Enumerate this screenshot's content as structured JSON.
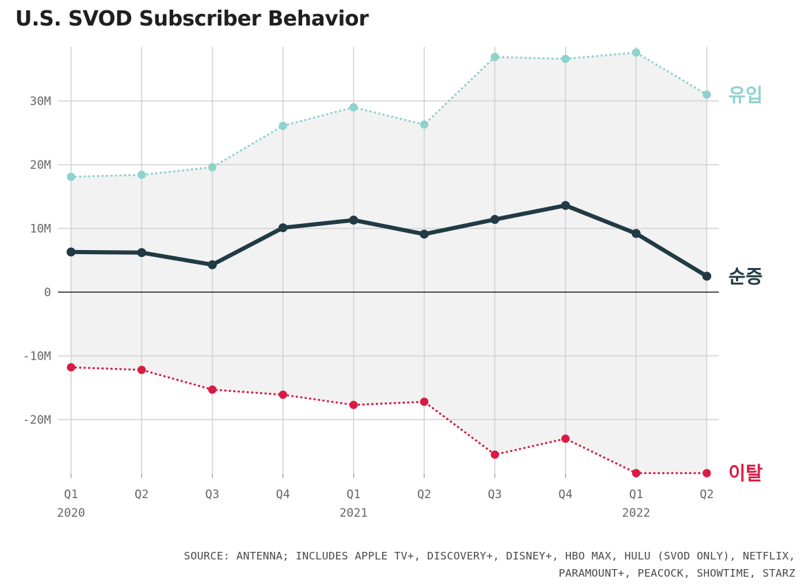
{
  "chart_data": {
    "type": "line",
    "title": "U.S. SVOD Subscriber Behavior",
    "categories": [
      "Q1 2020",
      "Q2 2020",
      "Q3 2020",
      "Q4 2020",
      "Q1 2021",
      "Q2 2021",
      "Q3 2021",
      "Q4 2021",
      "Q1 2022",
      "Q2 2022"
    ],
    "x_tick_labels": [
      {
        "quarter": "Q1",
        "year": "2020"
      },
      {
        "quarter": "Q2",
        "year": ""
      },
      {
        "quarter": "Q3",
        "year": ""
      },
      {
        "quarter": "Q4",
        "year": ""
      },
      {
        "quarter": "Q1",
        "year": "2021"
      },
      {
        "quarter": "Q2",
        "year": ""
      },
      {
        "quarter": "Q3",
        "year": ""
      },
      {
        "quarter": "Q4",
        "year": ""
      },
      {
        "quarter": "Q1",
        "year": "2022"
      },
      {
        "quarter": "Q2",
        "year": ""
      }
    ],
    "y_ticks": [
      {
        "value": 30,
        "label": "30M"
      },
      {
        "value": 20,
        "label": "20M"
      },
      {
        "value": 10,
        "label": "10M"
      },
      {
        "value": 0,
        "label": "0"
      },
      {
        "value": -10,
        "label": "-10M"
      },
      {
        "value": -20,
        "label": "-20M"
      }
    ],
    "ylim": [
      -28.5,
      38.5
    ],
    "unit": "M",
    "grid": true,
    "series": [
      {
        "name": "유입",
        "color": "#8ed2cc",
        "style": "dotted",
        "values": [
          18.1,
          18.4,
          19.6,
          26.1,
          29.0,
          26.3,
          36.9,
          36.6,
          37.6,
          31.0
        ]
      },
      {
        "name": "순증",
        "color": "#213a44",
        "style": "solid",
        "values": [
          6.3,
          6.2,
          4.3,
          10.1,
          11.3,
          9.1,
          11.4,
          13.6,
          9.2,
          2.5
        ]
      },
      {
        "name": "이탈",
        "color": "#d91a42",
        "style": "dotted",
        "values": [
          -11.8,
          -12.2,
          -15.3,
          -16.1,
          -17.7,
          -17.2,
          -25.5,
          -23.0,
          -28.4,
          -28.4
        ]
      }
    ],
    "fill_between": [
      "유입",
      "이탈"
    ],
    "fill_color": "#f2f2f2"
  },
  "source": {
    "line1": "SOURCE: ANTENNA; INCLUDES APPLE TV+, DISCOVERY+, DISNEY+, HBO MAX, HULU (SVOD ONLY), NETFLIX,",
    "line2": "PARAMOUNT+, PEACOCK, SHOWTIME, STARZ"
  }
}
